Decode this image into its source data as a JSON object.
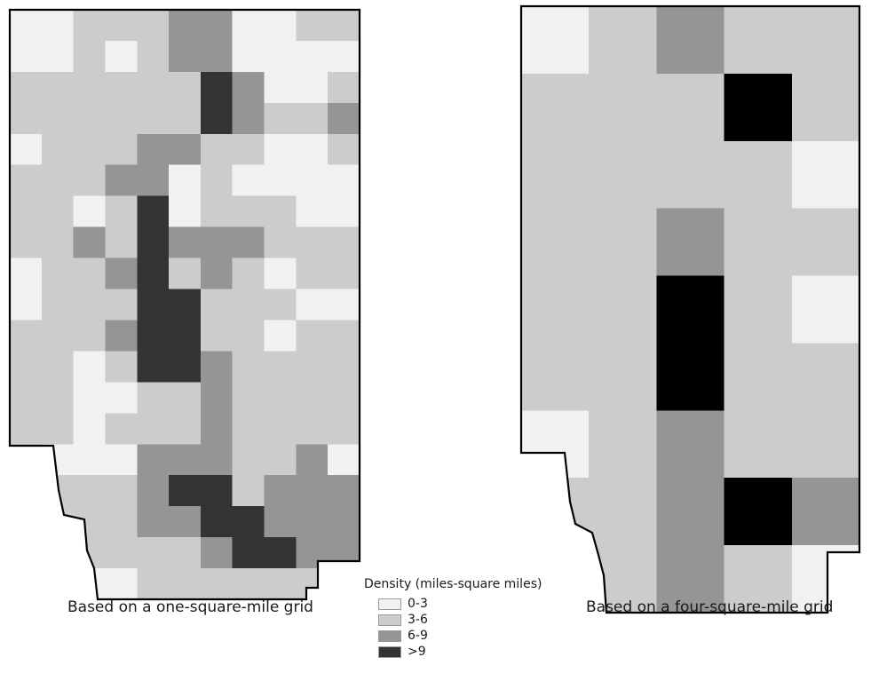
{
  "maps": [
    {
      "caption": "Based on a one-square-mile grid",
      "grid_cell": "one-square-mile",
      "rows": [
        [
          1,
          1,
          2,
          2,
          2,
          3,
          3,
          1,
          1,
          2,
          2
        ],
        [
          1,
          1,
          2,
          1,
          2,
          3,
          3,
          1,
          1,
          1,
          1
        ],
        [
          2,
          2,
          2,
          2,
          2,
          2,
          4,
          3,
          1,
          1,
          2
        ],
        [
          2,
          2,
          2,
          2,
          2,
          2,
          4,
          3,
          2,
          2,
          3
        ],
        [
          1,
          2,
          2,
          2,
          3,
          3,
          2,
          2,
          1,
          1,
          2
        ],
        [
          2,
          2,
          2,
          3,
          3,
          1,
          2,
          1,
          1,
          1,
          1
        ],
        [
          2,
          2,
          1,
          2,
          4,
          1,
          2,
          2,
          2,
          1,
          1
        ],
        [
          2,
          2,
          3,
          2,
          4,
          3,
          3,
          3,
          2,
          2,
          2
        ],
        [
          1,
          2,
          2,
          3,
          4,
          2,
          3,
          2,
          1,
          2,
          2
        ],
        [
          1,
          2,
          2,
          2,
          4,
          4,
          2,
          2,
          2,
          1,
          1
        ],
        [
          2,
          2,
          2,
          3,
          4,
          4,
          2,
          2,
          1,
          2,
          2
        ],
        [
          2,
          2,
          1,
          2,
          4,
          4,
          3,
          2,
          2,
          2,
          2
        ],
        [
          2,
          2,
          1,
          1,
          2,
          2,
          3,
          2,
          2,
          2,
          2
        ],
        [
          2,
          2,
          1,
          2,
          2,
          2,
          3,
          2,
          2,
          2,
          2
        ],
        [
          2,
          1,
          1,
          1,
          3,
          3,
          3,
          2,
          2,
          3,
          1
        ],
        [
          2,
          2,
          2,
          2,
          3,
          4,
          4,
          2,
          3,
          3,
          3
        ],
        [
          2,
          2,
          2,
          2,
          3,
          3,
          4,
          4,
          3,
          3,
          3
        ],
        [
          2,
          2,
          2,
          2,
          2,
          2,
          3,
          4,
          4,
          3,
          3
        ],
        [
          2,
          1,
          1,
          1,
          2,
          2,
          2,
          2,
          2,
          2,
          2
        ]
      ]
    },
    {
      "caption": "Based on a four-square-mile grid",
      "grid_cell": "four-square-mile",
      "rows": [
        [
          1,
          2,
          3,
          2,
          2
        ],
        [
          2,
          2,
          2,
          4,
          2
        ],
        [
          2,
          2,
          2,
          2,
          1
        ],
        [
          2,
          2,
          3,
          2,
          2
        ],
        [
          2,
          2,
          4,
          2,
          1
        ],
        [
          2,
          2,
          4,
          2,
          2
        ],
        [
          1,
          2,
          3,
          2,
          2
        ],
        [
          2,
          2,
          3,
          4,
          3
        ],
        [
          1,
          2,
          3,
          2,
          1
        ]
      ]
    }
  ],
  "legend": {
    "title": "Density (miles-square miles)",
    "classes": [
      {
        "label": "0-3",
        "color": "#f1f1f1"
      },
      {
        "label": "3-6",
        "color": "#cccccc"
      },
      {
        "label": "6-9",
        "color": "#959595"
      },
      {
        "label": ">9",
        "color": "#333333"
      }
    ]
  },
  "colors": {
    "outline": "#000000",
    "class_1": "#f1f1f1",
    "class_2": "#cccccc",
    "class_3": "#959595",
    "class_4": "#333333",
    "class_4_coarse": "#000000"
  }
}
